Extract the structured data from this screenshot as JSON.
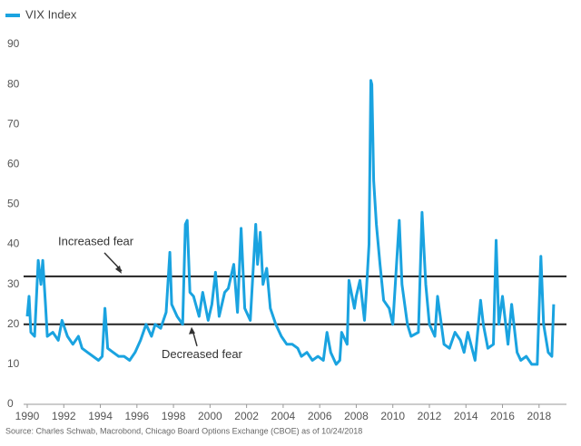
{
  "chart_data": {
    "type": "line",
    "series": [
      {
        "name": "VIX Index",
        "color": "#1aa3e0",
        "values": [
          22,
          27,
          18,
          17,
          36,
          30,
          36,
          25,
          17,
          18,
          16,
          21,
          17,
          15,
          17,
          14,
          13,
          12,
          11,
          12,
          24,
          14,
          13,
          12,
          12,
          11,
          13,
          16,
          20,
          17,
          20,
          19,
          23,
          38,
          25,
          22,
          20,
          45,
          46,
          28,
          27,
          22,
          28,
          21,
          25,
          33,
          22,
          28,
          29,
          35,
          23,
          44,
          24,
          21,
          45,
          35,
          43,
          30,
          34,
          24,
          20,
          17,
          15,
          15,
          14,
          12,
          13,
          11,
          12,
          11,
          18,
          13,
          10,
          11,
          18,
          15,
          31,
          24,
          27,
          31,
          21,
          28,
          40,
          81,
          80,
          56,
          45,
          35,
          26,
          24,
          20,
          46,
          30,
          20,
          17,
          18,
          48,
          30,
          20,
          17,
          27,
          15,
          14,
          18,
          16,
          13,
          18,
          11,
          26,
          20,
          14,
          15,
          41,
          20,
          27,
          15,
          25,
          13,
          11,
          12,
          10,
          10,
          37,
          20,
          13,
          12,
          25
        ]
      }
    ],
    "x": [
      1990.0,
      1990.1,
      1990.2,
      1990.4,
      1990.6,
      1990.75,
      1990.85,
      1991.0,
      1991.1,
      1991.4,
      1991.7,
      1991.9,
      1992.2,
      1992.5,
      1992.8,
      1993.0,
      1993.3,
      1993.6,
      1993.9,
      1994.1,
      1994.25,
      1994.4,
      1994.7,
      1995.0,
      1995.3,
      1995.6,
      1995.9,
      1996.2,
      1996.5,
      1996.8,
      1997.0,
      1997.3,
      1997.6,
      1997.8,
      1997.9,
      1998.2,
      1998.5,
      1998.65,
      1998.75,
      1998.9,
      1999.1,
      1999.4,
      1999.6,
      1999.9,
      2000.1,
      2000.3,
      2000.5,
      2000.8,
      2001.0,
      2001.3,
      2001.5,
      2001.7,
      2001.9,
      2002.2,
      2002.5,
      2002.6,
      2002.75,
      2002.9,
      2003.1,
      2003.3,
      2003.6,
      2003.9,
      2004.2,
      2004.5,
      2004.8,
      2005.0,
      2005.3,
      2005.6,
      2005.9,
      2006.2,
      2006.4,
      2006.6,
      2006.9,
      2007.1,
      2007.2,
      2007.5,
      2007.6,
      2007.9,
      2008.0,
      2008.2,
      2008.45,
      2008.55,
      2008.7,
      2008.8,
      2008.85,
      2008.95,
      2009.1,
      2009.3,
      2009.5,
      2009.8,
      2010.0,
      2010.35,
      2010.5,
      2010.8,
      2011.0,
      2011.4,
      2011.6,
      2011.8,
      2012.0,
      2012.3,
      2012.45,
      2012.8,
      2013.1,
      2013.4,
      2013.7,
      2013.9,
      2014.1,
      2014.5,
      2014.8,
      2014.95,
      2015.2,
      2015.5,
      2015.65,
      2015.8,
      2016.0,
      2016.3,
      2016.5,
      2016.8,
      2017.0,
      2017.3,
      2017.6,
      2017.9,
      2018.1,
      2018.25,
      2018.5,
      2018.7,
      2018.8
    ],
    "xlim": [
      1990,
      2019.5
    ],
    "xticks": [
      1990,
      1992,
      1994,
      1996,
      1998,
      2000,
      2002,
      2004,
      2006,
      2008,
      2010,
      2012,
      2014,
      2016,
      2018
    ],
    "ylim": [
      0,
      90
    ],
    "yticks": [
      0,
      10,
      20,
      30,
      40,
      50,
      60,
      70,
      80,
      90
    ],
    "reference_lines": [
      {
        "value": 32,
        "label": "Increased fear"
      },
      {
        "value": 20,
        "label": "Decreased fear"
      }
    ],
    "reference_color": "#222222",
    "legend": "top-left",
    "source": "Source: Charles Schwab, Macrobond, Chicago Board Options Exchange (CBOE) as of 10/24/2018"
  }
}
